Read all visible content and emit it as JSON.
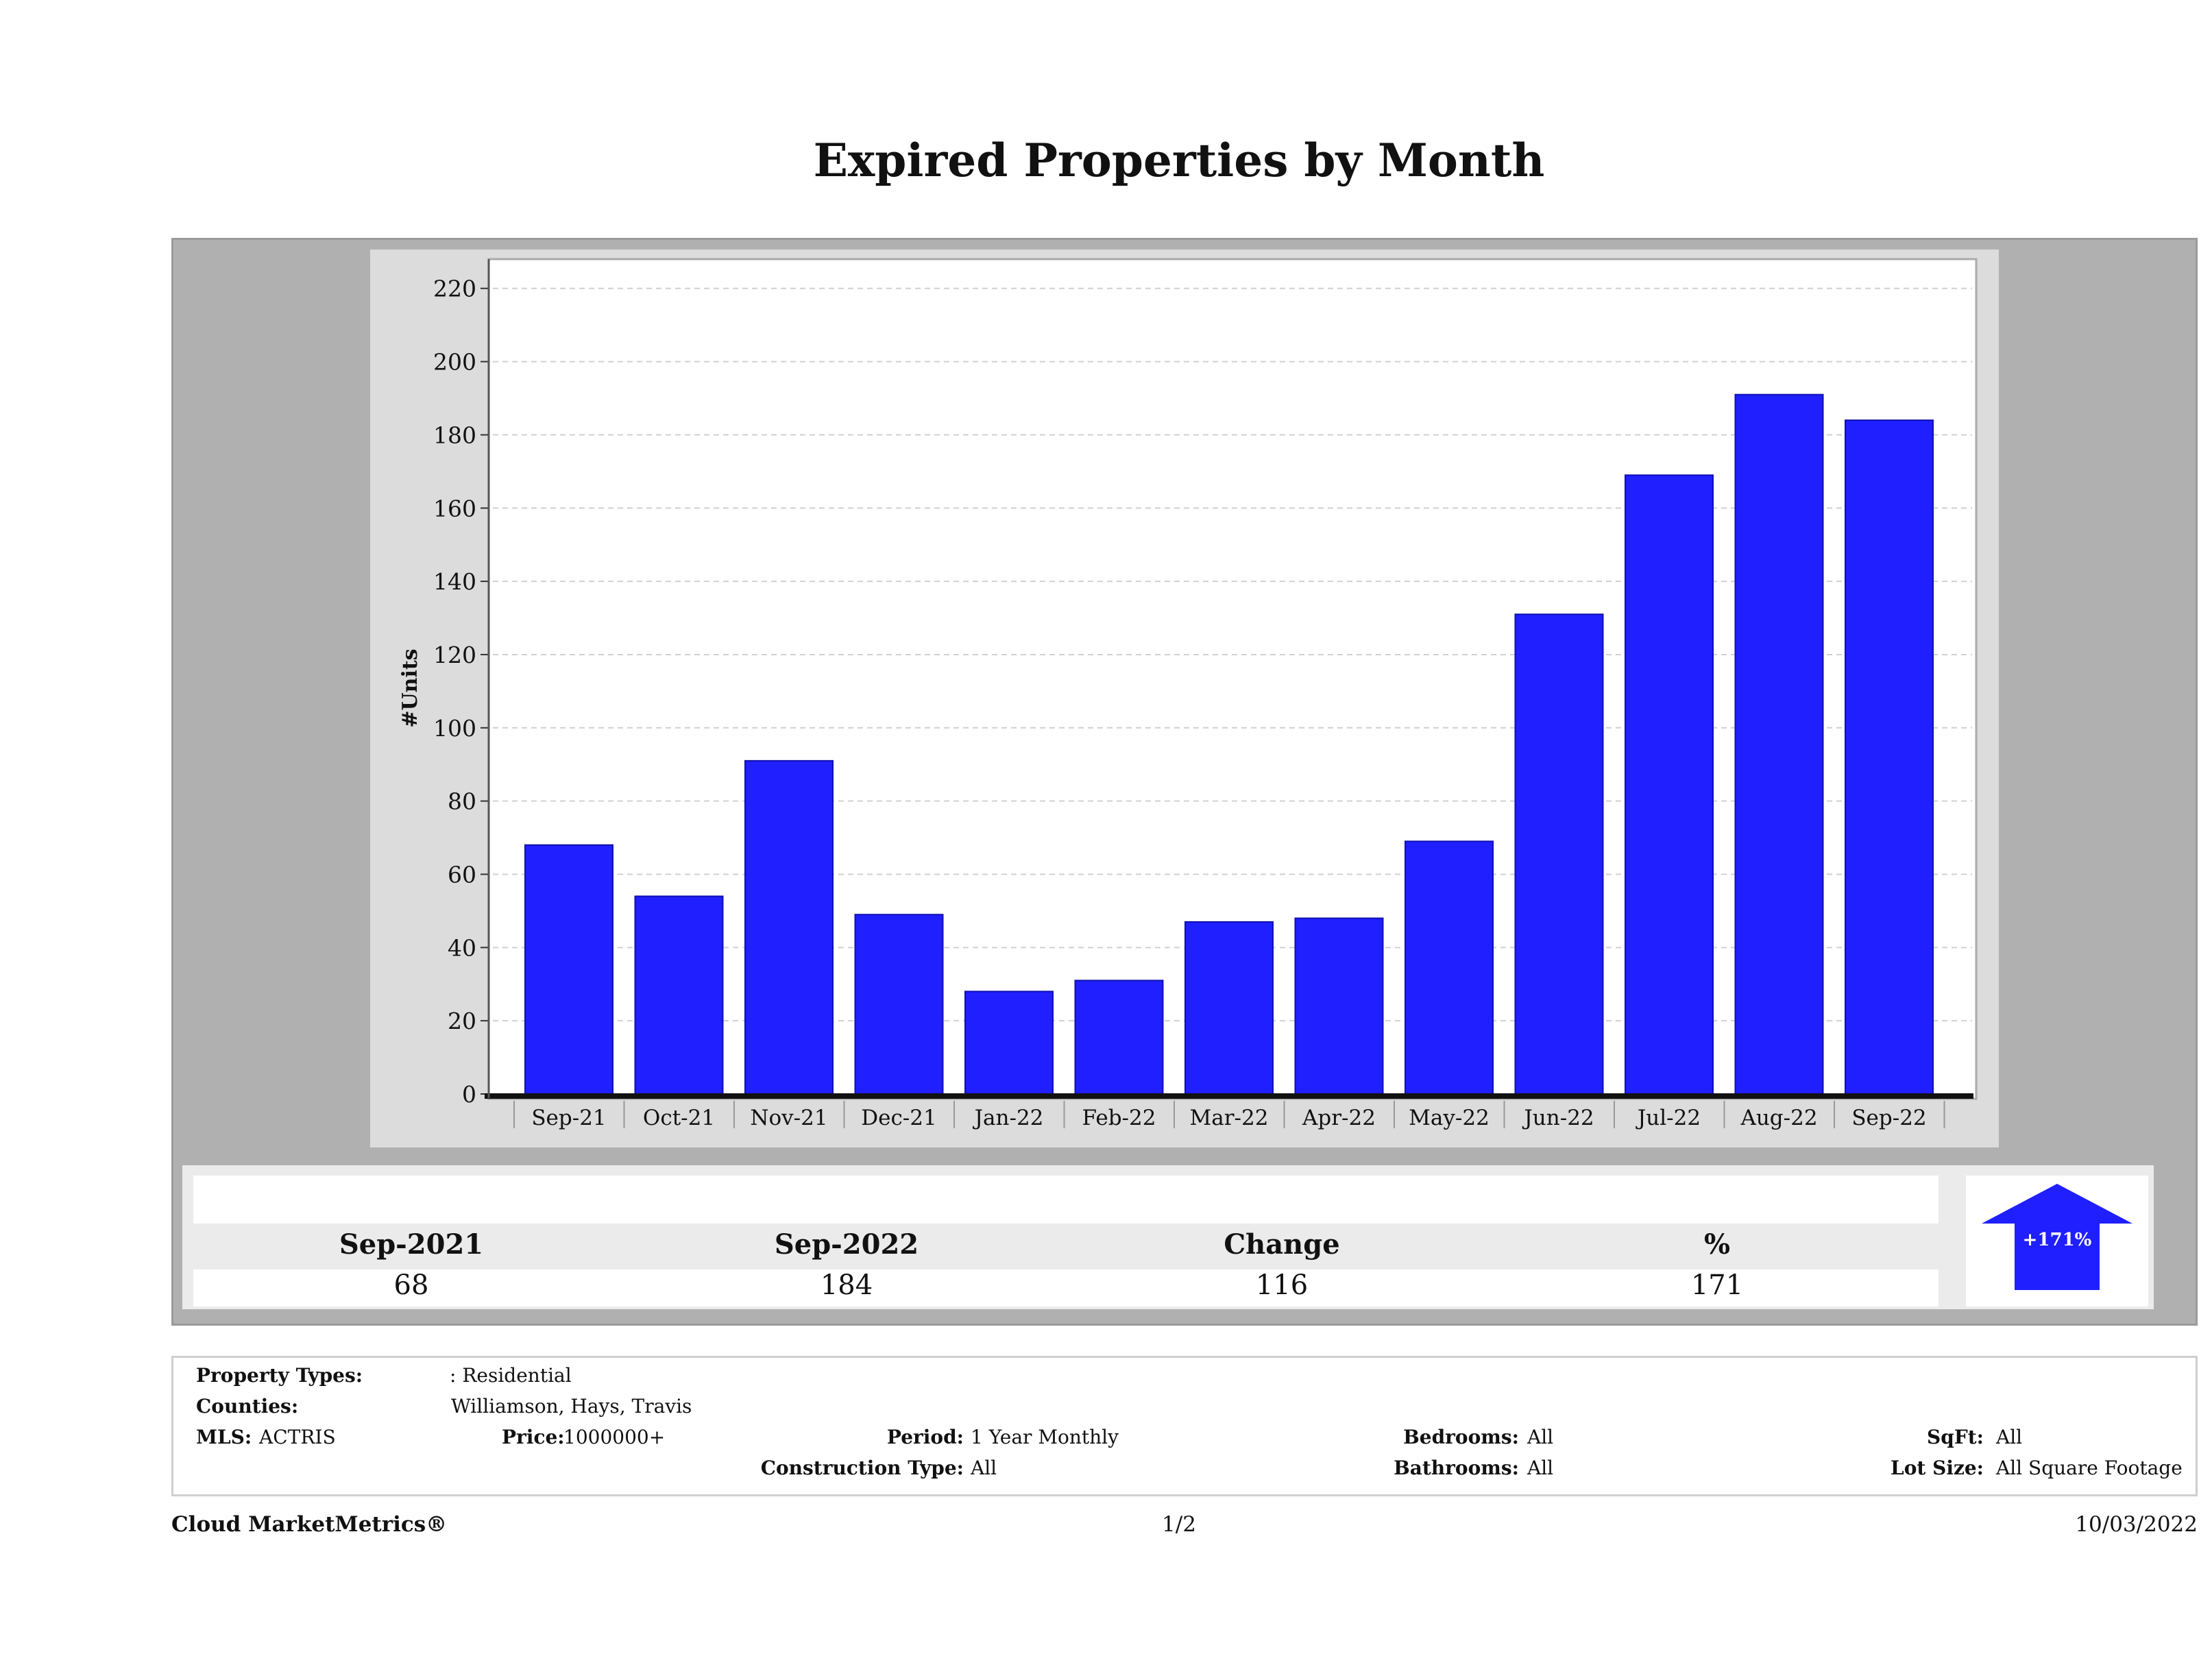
{
  "title": "Expired Properties by Month",
  "chart_data": {
    "type": "bar",
    "ylabel": "#Units",
    "xlabel": "",
    "categories": [
      "Sep-21",
      "Oct-21",
      "Nov-21",
      "Dec-21",
      "Jan-22",
      "Feb-22",
      "Mar-22",
      "Apr-22",
      "May-22",
      "Jun-22",
      "Jul-22",
      "Aug-22",
      "Sep-22"
    ],
    "values": [
      68,
      54,
      91,
      49,
      28,
      31,
      47,
      48,
      69,
      131,
      169,
      191,
      184
    ],
    "ylim": [
      0,
      228
    ],
    "yticks": [
      0,
      20,
      40,
      60,
      80,
      100,
      120,
      140,
      160,
      180,
      200,
      220
    ],
    "grid": true,
    "bar_color": "#1f1fff"
  },
  "summary": {
    "col1_label": "Sep-2021",
    "col1_value": "68",
    "col2_label": "Sep-2022",
    "col2_value": "184",
    "col3_label": "Change",
    "col3_value": "116",
    "col4_label": "%",
    "col4_value": "171",
    "arrow_text": "+171%",
    "arrow_color": "#1f1fff",
    "arrow_icon": "up-arrow-icon"
  },
  "criteria": {
    "property_types_label": "Property Types:",
    "property_types_value": ": Residential",
    "counties_label": "Counties:",
    "counties_value": "Williamson, Hays, Travis",
    "mls_label": "MLS:",
    "mls_value": "ACTRIS",
    "price_label": "Price:",
    "price_value": "1000000+",
    "period_label": "Period:",
    "period_value": "1 Year Monthly",
    "construction_label": "Construction Type:",
    "construction_value": "All",
    "bedrooms_label": "Bedrooms:",
    "bedrooms_value": "All",
    "bathrooms_label": "Bathrooms:",
    "bathrooms_value": "All",
    "sqft_label": "SqFt:",
    "sqft_value": "All",
    "lot_label": "Lot Size:",
    "lot_value": "All Square Footage"
  },
  "footer": {
    "brand": "Cloud MarketMetrics®",
    "page": "1/2",
    "date": "10/03/2022"
  }
}
